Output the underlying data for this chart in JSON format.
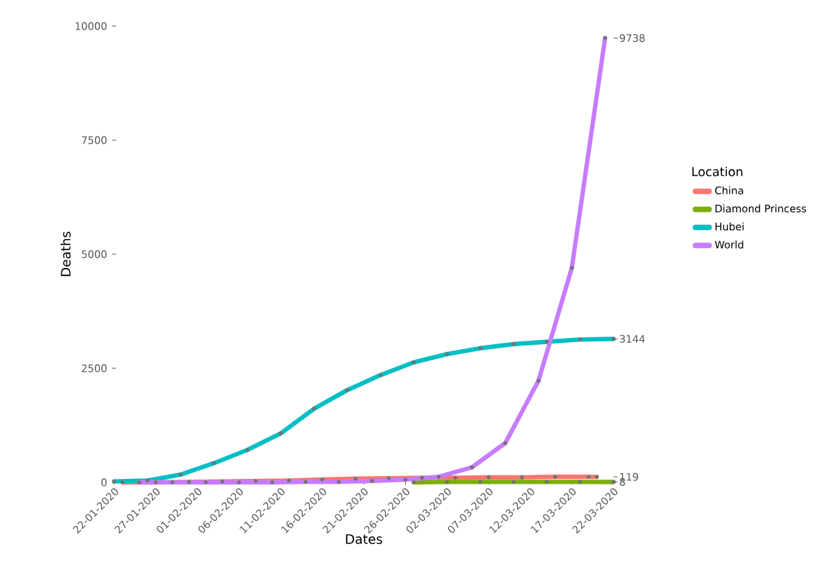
{
  "chart_data": {
    "type": "line",
    "xlabel": "Dates",
    "ylabel": "Deaths",
    "legend_title": "Location",
    "legend": "right",
    "marker": "circle",
    "grid": false,
    "xticks": [
      {
        "value": "2020-01-22",
        "label": "22-01-2020"
      },
      {
        "value": "2020-01-27",
        "label": "27-01-2020"
      },
      {
        "value": "2020-02-01",
        "label": "01-02-2020"
      },
      {
        "value": "2020-02-06",
        "label": "06-02-2020"
      },
      {
        "value": "2020-02-11",
        "label": "11-02-2020"
      },
      {
        "value": "2020-02-16",
        "label": "16-02-2020"
      },
      {
        "value": "2020-02-21",
        "label": "21-02-2020"
      },
      {
        "value": "2020-02-26",
        "label": "26-02-2020"
      },
      {
        "value": "2020-03-02",
        "label": "02-03-2020"
      },
      {
        "value": "2020-03-07",
        "label": "07-03-2020"
      },
      {
        "value": "2020-03-12",
        "label": "12-03-2020"
      },
      {
        "value": "2020-03-17",
        "label": "17-03-2020"
      },
      {
        "value": "2020-03-22",
        "label": "22-03-2020"
      }
    ],
    "xlim": [
      "2020-01-22",
      "2020-03-22"
    ],
    "ylim": [
      0,
      10000
    ],
    "y2lim": [
      8,
      9738
    ],
    "yticks": [
      0,
      2500,
      5000,
      7500,
      10000
    ],
    "y2ticks": [
      8,
      119,
      3144,
      9738
    ],
    "series": [
      {
        "name": "China",
        "color": "#f8766d",
        "x": [
          "2020-01-23",
          "2020-01-27",
          "2020-01-31",
          "2020-02-04",
          "2020-02-08",
          "2020-02-12",
          "2020-02-16",
          "2020-02-20",
          "2020-02-24",
          "2020-02-28",
          "2020-03-03",
          "2020-03-07",
          "2020-03-11",
          "2020-03-15",
          "2020-03-19",
          "2020-03-20"
        ],
        "values": [
          0,
          0,
          10,
          20,
          30,
          40,
          60,
          80,
          90,
          100,
          100,
          110,
          110,
          120,
          120,
          119
        ]
      },
      {
        "name": "Diamond Princess",
        "color": "#7cae00",
        "x": [
          "2020-02-27",
          "2020-03-02",
          "2020-03-06",
          "2020-03-10",
          "2020-03-14",
          "2020-03-18",
          "2020-03-22"
        ],
        "values": [
          0,
          10,
          10,
          10,
          10,
          10,
          8
        ]
      },
      {
        "name": "Hubei",
        "color": "#00bfc4",
        "x": [
          "2020-01-22",
          "2020-01-26",
          "2020-01-30",
          "2020-02-03",
          "2020-02-07",
          "2020-02-11",
          "2020-02-15",
          "2020-02-19",
          "2020-02-23",
          "2020-02-27",
          "2020-03-02",
          "2020-03-06",
          "2020-03-10",
          "2020-03-14",
          "2020-03-18",
          "2020-03-22"
        ],
        "values": [
          20,
          40,
          170,
          420,
          710,
          1070,
          1610,
          2020,
          2350,
          2630,
          2810,
          2940,
          3030,
          3080,
          3130,
          3144
        ]
      },
      {
        "name": "World",
        "color": "#c77cff",
        "x": [
          "2020-01-25",
          "2020-01-29",
          "2020-02-02",
          "2020-02-06",
          "2020-02-10",
          "2020-02-14",
          "2020-02-18",
          "2020-02-22",
          "2020-02-26",
          "2020-03-01",
          "2020-03-05",
          "2020-03-09",
          "2020-03-13",
          "2020-03-17",
          "2020-03-21"
        ],
        "values": [
          0,
          0,
          0,
          0,
          0,
          10,
          10,
          30,
          60,
          120,
          330,
          860,
          2230,
          4700,
          9738
        ]
      }
    ]
  }
}
